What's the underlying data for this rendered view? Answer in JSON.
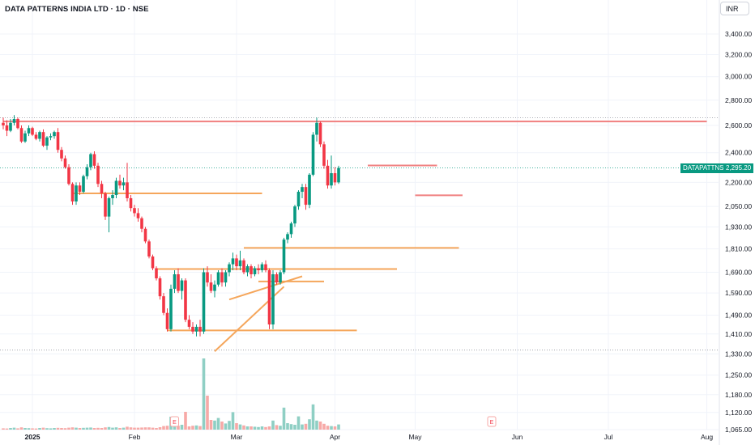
{
  "header": {
    "title": "DATA PATTERNS INDIA LTD · 1D · NSE",
    "currency_button": "INR"
  },
  "price_tag": {
    "symbol": "DATAPATTNS",
    "price": "2,295.20"
  },
  "earnings_badge": "E",
  "colors": {
    "up": "#089981",
    "down": "#f23645",
    "vol_up": "#8fcfc4",
    "vol_down": "#f7a9a7",
    "resistance": "#f08080",
    "support": "#f5a65b"
  },
  "chart_data": {
    "type": "candlestick",
    "scale": "log",
    "ylim": [
      1050,
      3700
    ],
    "ticks": [
      "3,400.00",
      "3,200.00",
      "3,000.00",
      "2,800.00",
      "2,600.00",
      "2,400.00",
      "2,200.00",
      "2,050.00",
      "1,930.00",
      "1,810.00",
      "1,690.00",
      "1,590.00",
      "1,490.00",
      "1,410.00",
      "1,330.00",
      "1,250.00",
      "1,180.00",
      "1,120.00",
      "1,065.00"
    ],
    "tick_values": [
      3400,
      3200,
      3000,
      2800,
      2600,
      2400,
      2200,
      2050,
      1930,
      1810,
      1690,
      1590,
      1490,
      1410,
      1330,
      1250,
      1180,
      1120,
      1065
    ],
    "x_labels": [
      {
        "label": "2025",
        "day": 8
      },
      {
        "label": "Feb",
        "day": 36
      },
      {
        "label": "Mar",
        "day": 64
      },
      {
        "label": "Apr",
        "day": 91
      },
      {
        "label": "May",
        "day": 113
      },
      {
        "label": "Jun",
        "day": 141
      },
      {
        "label": "Jul",
        "day": 166
      },
      {
        "label": "Aug",
        "day": 193
      }
    ],
    "last_price": 2295.2,
    "dotted_levels": [
      2660,
      1345
    ],
    "earnings_days": [
      47,
      134
    ],
    "candles": [
      [
        2620,
        2660,
        2570,
        2600
      ],
      [
        2600,
        2640,
        2520,
        2560
      ],
      [
        2560,
        2650,
        2550,
        2620
      ],
      [
        2620,
        2680,
        2600,
        2650
      ],
      [
        2650,
        2660,
        2570,
        2580
      ],
      [
        2580,
        2600,
        2470,
        2480
      ],
      [
        2480,
        2560,
        2470,
        2540
      ],
      [
        2540,
        2600,
        2520,
        2580
      ],
      [
        2580,
        2590,
        2520,
        2530
      ],
      [
        2530,
        2550,
        2490,
        2500
      ],
      [
        2500,
        2560,
        2480,
        2550
      ],
      [
        2550,
        2570,
        2440,
        2450
      ],
      [
        2450,
        2520,
        2420,
        2510
      ],
      [
        2510,
        2540,
        2490,
        2520
      ],
      [
        2520,
        2560,
        2500,
        2550
      ],
      [
        2550,
        2580,
        2400,
        2420
      ],
      [
        2420,
        2440,
        2340,
        2360
      ],
      [
        2360,
        2380,
        2290,
        2300
      ],
      [
        2300,
        2320,
        2180,
        2190
      ],
      [
        2190,
        2200,
        2060,
        2080
      ],
      [
        2080,
        2200,
        2060,
        2180
      ],
      [
        2180,
        2200,
        2120,
        2140
      ],
      [
        2140,
        2250,
        2130,
        2240
      ],
      [
        2240,
        2320,
        2220,
        2300
      ],
      [
        2300,
        2400,
        2280,
        2390
      ],
      [
        2390,
        2410,
        2290,
        2310
      ],
      [
        2310,
        2330,
        2170,
        2190
      ],
      [
        2190,
        2210,
        2100,
        2130
      ],
      [
        2130,
        2140,
        1970,
        1990
      ],
      [
        1990,
        2110,
        1900,
        2100
      ],
      [
        2100,
        2150,
        2060,
        2120
      ],
      [
        2120,
        2230,
        2100,
        2210
      ],
      [
        2210,
        2250,
        2160,
        2180
      ],
      [
        2180,
        2230,
        2150,
        2200
      ],
      [
        2200,
        2330,
        2080,
        2100
      ],
      [
        2100,
        2120,
        2020,
        2040
      ],
      [
        2040,
        2060,
        1990,
        2010
      ],
      [
        2010,
        2040,
        1960,
        1980
      ],
      [
        1980,
        1990,
        1900,
        1920
      ],
      [
        1920,
        1930,
        1840,
        1850
      ],
      [
        1850,
        1860,
        1760,
        1770
      ],
      [
        1770,
        1780,
        1700,
        1710
      ],
      [
        1710,
        1720,
        1650,
        1660
      ],
      [
        1660,
        1670,
        1560,
        1575
      ],
      [
        1575,
        1590,
        1490,
        1500
      ],
      [
        1500,
        1520,
        1420,
        1430
      ],
      [
        1430,
        1630,
        1420,
        1610
      ],
      [
        1610,
        1700,
        1590,
        1680
      ],
      [
        1680,
        1710,
        1590,
        1600
      ],
      [
        1600,
        1660,
        1560,
        1650
      ],
      [
        1650,
        1660,
        1460,
        1470
      ],
      [
        1470,
        1490,
        1430,
        1440
      ],
      [
        1440,
        1460,
        1410,
        1420
      ],
      [
        1420,
        1450,
        1400,
        1440
      ],
      [
        1440,
        1470,
        1400,
        1420
      ],
      [
        1420,
        1710,
        1410,
        1690
      ],
      [
        1690,
        1720,
        1620,
        1640
      ],
      [
        1640,
        1680,
        1590,
        1600
      ],
      [
        1600,
        1650,
        1570,
        1630
      ],
      [
        1630,
        1700,
        1620,
        1690
      ],
      [
        1690,
        1710,
        1620,
        1640
      ],
      [
        1640,
        1700,
        1620,
        1690
      ],
      [
        1690,
        1740,
        1670,
        1730
      ],
      [
        1730,
        1790,
        1700,
        1760
      ],
      [
        1760,
        1780,
        1700,
        1720
      ],
      [
        1720,
        1800,
        1700,
        1750
      ],
      [
        1750,
        1760,
        1680,
        1690
      ],
      [
        1690,
        1730,
        1670,
        1720
      ],
      [
        1720,
        1730,
        1660,
        1680
      ],
      [
        1680,
        1720,
        1670,
        1710
      ],
      [
        1710,
        1730,
        1680,
        1700
      ],
      [
        1700,
        1740,
        1690,
        1730
      ],
      [
        1730,
        1750,
        1690,
        1700
      ],
      [
        1700,
        1710,
        1430,
        1450
      ],
      [
        1450,
        1700,
        1430,
        1680
      ],
      [
        1680,
        1690,
        1630,
        1640
      ],
      [
        1640,
        1700,
        1630,
        1690
      ],
      [
        1690,
        1870,
        1680,
        1860
      ],
      [
        1860,
        1900,
        1840,
        1890
      ],
      [
        1890,
        1960,
        1870,
        1950
      ],
      [
        1950,
        2060,
        1930,
        2050
      ],
      [
        2050,
        2150,
        2030,
        2140
      ],
      [
        2140,
        2190,
        2100,
        2170
      ],
      [
        2170,
        2190,
        2030,
        2060
      ],
      [
        2060,
        2260,
        2040,
        2250
      ],
      [
        2250,
        2550,
        2240,
        2530
      ],
      [
        2530,
        2660,
        2480,
        2620
      ],
      [
        2620,
        2630,
        2440,
        2460
      ],
      [
        2460,
        2480,
        2290,
        2310
      ],
      [
        2310,
        2350,
        2160,
        2180
      ],
      [
        2180,
        2380,
        2160,
        2260
      ],
      [
        2260,
        2300,
        2180,
        2200
      ],
      [
        2200,
        2310,
        2190,
        2295
      ]
    ],
    "volumes": [
      [
        0.4,
        0
      ],
      [
        0.35,
        0
      ],
      [
        0.5,
        1
      ],
      [
        0.6,
        1
      ],
      [
        0.4,
        0
      ],
      [
        0.7,
        0
      ],
      [
        0.5,
        1
      ],
      [
        0.45,
        1
      ],
      [
        0.4,
        0
      ],
      [
        0.35,
        0
      ],
      [
        0.5,
        1
      ],
      [
        0.6,
        0
      ],
      [
        0.45,
        1
      ],
      [
        0.4,
        1
      ],
      [
        0.5,
        1
      ],
      [
        0.55,
        0
      ],
      [
        0.5,
        0
      ],
      [
        0.45,
        0
      ],
      [
        0.6,
        0
      ],
      [
        0.7,
        0
      ],
      [
        0.6,
        1
      ],
      [
        0.5,
        0
      ],
      [
        0.55,
        1
      ],
      [
        0.6,
        1
      ],
      [
        0.65,
        1
      ],
      [
        0.5,
        0
      ],
      [
        0.55,
        0
      ],
      [
        0.5,
        0
      ],
      [
        0.7,
        0
      ],
      [
        0.8,
        1
      ],
      [
        0.6,
        1
      ],
      [
        0.7,
        1
      ],
      [
        0.5,
        0
      ],
      [
        0.6,
        1
      ],
      [
        0.9,
        0
      ],
      [
        0.7,
        0
      ],
      [
        0.6,
        0
      ],
      [
        0.6,
        0
      ],
      [
        0.65,
        0
      ],
      [
        0.7,
        0
      ],
      [
        0.7,
        0
      ],
      [
        0.6,
        0
      ],
      [
        0.5,
        0
      ],
      [
        0.75,
        0
      ],
      [
        1.1,
        0
      ],
      [
        1.2,
        0
      ],
      [
        4.0,
        1
      ],
      [
        1.5,
        1
      ],
      [
        1.2,
        0
      ],
      [
        1.5,
        1
      ],
      [
        5.5,
        0
      ],
      [
        1.0,
        0
      ],
      [
        1.2,
        0
      ],
      [
        1.3,
        1
      ],
      [
        1.1,
        0
      ],
      [
        22,
        1
      ],
      [
        10.5,
        0
      ],
      [
        3.0,
        0
      ],
      [
        2.8,
        1
      ],
      [
        3.6,
        1
      ],
      [
        2.5,
        0
      ],
      [
        1.9,
        1
      ],
      [
        2.7,
        1
      ],
      [
        5.4,
        1
      ],
      [
        2.0,
        0
      ],
      [
        1.6,
        1
      ],
      [
        1.3,
        0
      ],
      [
        1.0,
        1
      ],
      [
        1.0,
        0
      ],
      [
        0.9,
        1
      ],
      [
        0.8,
        1
      ],
      [
        1.0,
        1
      ],
      [
        0.8,
        0
      ],
      [
        1.0,
        0
      ],
      [
        2.8,
        1
      ],
      [
        1.4,
        0
      ],
      [
        1.2,
        1
      ],
      [
        6.8,
        1
      ],
      [
        2.0,
        1
      ],
      [
        1.7,
        1
      ],
      [
        1.5,
        1
      ],
      [
        4.1,
        1
      ],
      [
        1.6,
        1
      ],
      [
        1.8,
        0
      ],
      [
        3.2,
        1
      ],
      [
        7.8,
        1
      ],
      [
        2.8,
        1
      ],
      [
        2.5,
        0
      ],
      [
        1.8,
        0
      ],
      [
        1.2,
        0
      ],
      [
        1.1,
        1
      ],
      [
        1.0,
        0
      ],
      [
        1.6,
        1
      ]
    ],
    "lines": [
      {
        "kind": "resistance",
        "d1": 0,
        "d2": 193,
        "p1": 2630,
        "p2": 2630
      },
      {
        "kind": "resistance",
        "d1": 100,
        "d2": 119,
        "p1": 2312,
        "p2": 2312
      },
      {
        "kind": "resistance",
        "d1": 113,
        "d2": 126,
        "p1": 2118,
        "p2": 2118
      },
      {
        "kind": "support",
        "d1": 19,
        "d2": 71,
        "p1": 2130,
        "p2": 2130
      },
      {
        "kind": "support",
        "d1": 42,
        "d2": 108,
        "p1": 1706,
        "p2": 1706
      },
      {
        "kind": "support",
        "d1": 66,
        "d2": 125,
        "p1": 1815,
        "p2": 1815
      },
      {
        "kind": "support",
        "d1": 45,
        "d2": 97,
        "p1": 1425,
        "p2": 1425
      },
      {
        "kind": "support",
        "d1": 58,
        "d2": 77,
        "p1": 1340,
        "p2": 1620
      },
      {
        "kind": "support",
        "d1": 62,
        "d2": 82,
        "p1": 1560,
        "p2": 1670
      },
      {
        "kind": "support",
        "d1": 70,
        "d2": 88,
        "p1": 1645,
        "p2": 1645
      }
    ]
  }
}
